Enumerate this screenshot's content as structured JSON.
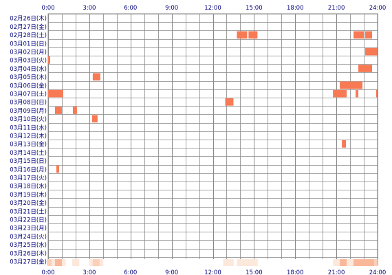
{
  "chart_data": {
    "type": "heatmap",
    "title": "",
    "xlabel": "",
    "ylabel": "",
    "x_unit": "hour",
    "xlim": [
      0,
      24
    ],
    "x_ticks": [
      "0:00",
      "3:00",
      "6:00",
      "9:00",
      "12:00",
      "15:00",
      "18:00",
      "21:00",
      "24:00"
    ],
    "rows": [
      "02月26日(木)",
      "02月27日(金)",
      "02月28日(土)",
      "03月01日(日)",
      "03月02日(月)",
      "03月03日(火)",
      "03月04日(水)",
      "03月05日(木)",
      "03月06日(金)",
      "03月07日(土)",
      "03月08日(日)",
      "03月09日(月)",
      "03月10日(火)",
      "03月11日(水)",
      "03月12日(木)",
      "03月13日(金)",
      "03月14日(土)",
      "03月15日(日)",
      "03月16日(月)",
      "03月17日(火)",
      "03月18日(水)",
      "03月19日(木)",
      "03月20日(金)",
      "03月21日(土)",
      "03月22日(日)",
      "03月23日(月)",
      "03月24日(火)",
      "03月25日(水)",
      "03月26日(木)",
      "03月27日(金)"
    ],
    "events": [
      {
        "row": 2,
        "start": 13.75,
        "end": 14.5
      },
      {
        "row": 2,
        "start": 14.6,
        "end": 15.25
      },
      {
        "row": 2,
        "start": 22.25,
        "end": 23.0
      },
      {
        "row": 2,
        "start": 23.1,
        "end": 23.6
      },
      {
        "row": 4,
        "start": 23.1,
        "end": 24.0
      },
      {
        "row": 5,
        "start": 0.0,
        "end": 0.15
      },
      {
        "row": 6,
        "start": 22.6,
        "end": 23.6
      },
      {
        "row": 7,
        "start": 3.25,
        "end": 3.8
      },
      {
        "row": 8,
        "start": 21.25,
        "end": 22.9
      },
      {
        "row": 9,
        "start": 0.0,
        "end": 1.1
      },
      {
        "row": 9,
        "start": 20.75,
        "end": 21.75
      },
      {
        "row": 9,
        "start": 22.4,
        "end": 22.6
      },
      {
        "row": 9,
        "start": 23.9,
        "end": 24.0
      },
      {
        "row": 10,
        "start": 12.9,
        "end": 13.5
      },
      {
        "row": 11,
        "start": 0.5,
        "end": 1.0
      },
      {
        "row": 11,
        "start": 1.8,
        "end": 2.1
      },
      {
        "row": 12,
        "start": 3.2,
        "end": 3.6
      },
      {
        "row": 15,
        "start": 21.4,
        "end": 21.7
      },
      {
        "row": 18,
        "start": 0.6,
        "end": 0.8
      }
    ],
    "summary_bar_colors": {
      "low": "#fde8dc",
      "mid": "#fbd0b8",
      "high": "#f9b89a"
    },
    "colors": {
      "event": "#f77a55",
      "grid": "#888888",
      "axis_text": "#00007a",
      "label_text": "#00007a"
    }
  }
}
